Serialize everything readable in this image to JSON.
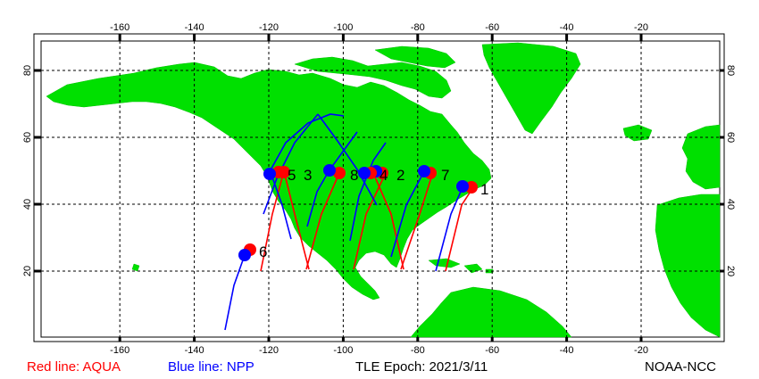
{
  "map": {
    "lon_ticks": [
      "-160",
      "-140",
      "-120",
      "-100",
      "-80",
      "-60",
      "-40",
      "-20"
    ],
    "lat_ticks": [
      "20",
      "40",
      "60",
      "80"
    ],
    "colors": {
      "land": "#00e000",
      "ocean": "#ffffff",
      "aqua": "#ff0000",
      "npp": "#0000ff",
      "grid": "#000000"
    }
  },
  "satellites": [
    {
      "id": "1",
      "aqua_point": [
        -65,
        45
      ],
      "npp_point": [
        -68,
        46
      ]
    },
    {
      "id": "2",
      "aqua_point": [
        -91,
        50
      ],
      "npp_point": [
        -89,
        50
      ]
    },
    {
      "id": "3",
      "aqua_point": [
        -116,
        50
      ],
      "npp_point": [
        -117,
        51
      ]
    },
    {
      "id": "4",
      "aqua_point": [
        -94,
        49
      ],
      "npp_point": [
        -95,
        49
      ]
    },
    {
      "id": "5",
      "aqua_point": [
        -117,
        50
      ],
      "npp_point": [
        -120,
        50
      ]
    },
    {
      "id": "6",
      "aqua_point": [
        -125,
        27
      ],
      "npp_point": [
        -126,
        25
      ]
    },
    {
      "id": "7",
      "aqua_point": [
        -76,
        50
      ],
      "npp_point": [
        -80,
        51
      ]
    },
    {
      "id": "8",
      "aqua_point": [
        -100,
        50
      ],
      "npp_point": [
        -103,
        51
      ]
    }
  ],
  "footer": {
    "aqua_legend": "Red line: AQUA",
    "npp_legend": "Blue line: NPP",
    "epoch": "TLE Epoch: 2021/3/11",
    "org": "NOAA-NCC"
  }
}
